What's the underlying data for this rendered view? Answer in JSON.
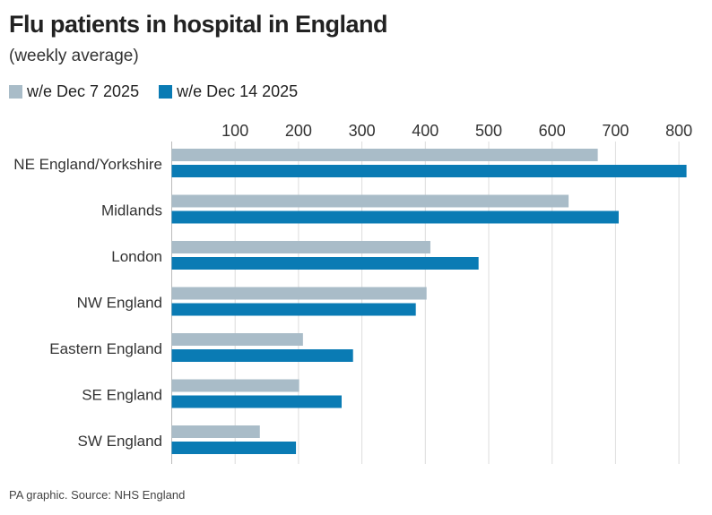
{
  "chart_data": {
    "type": "bar",
    "orientation": "horizontal",
    "title": "Flu patients in hospital in England",
    "subtitle": "(weekly average)",
    "categories": [
      "NE England/Yorkshire",
      "Midlands",
      "London",
      "NW England",
      "Eastern England",
      "SE England",
      "SW England"
    ],
    "series": [
      {
        "name": "w/e Dec 7 2025",
        "color": "#a9bcc8",
        "values": [
          672,
          626,
          408,
          402,
          207,
          201,
          139
        ]
      },
      {
        "name": "w/e Dec 14 2025",
        "color": "#0a7bb4",
        "values": [
          812,
          705,
          484,
          385,
          286,
          268,
          196
        ]
      }
    ],
    "xlim": [
      0,
      820
    ],
    "xticks": [
      100,
      200,
      300,
      400,
      500,
      600,
      700,
      800
    ],
    "xaxis_position": "top",
    "grid": true,
    "legend_position": "top-left"
  },
  "footer": "PA graphic. Source: NHS England"
}
